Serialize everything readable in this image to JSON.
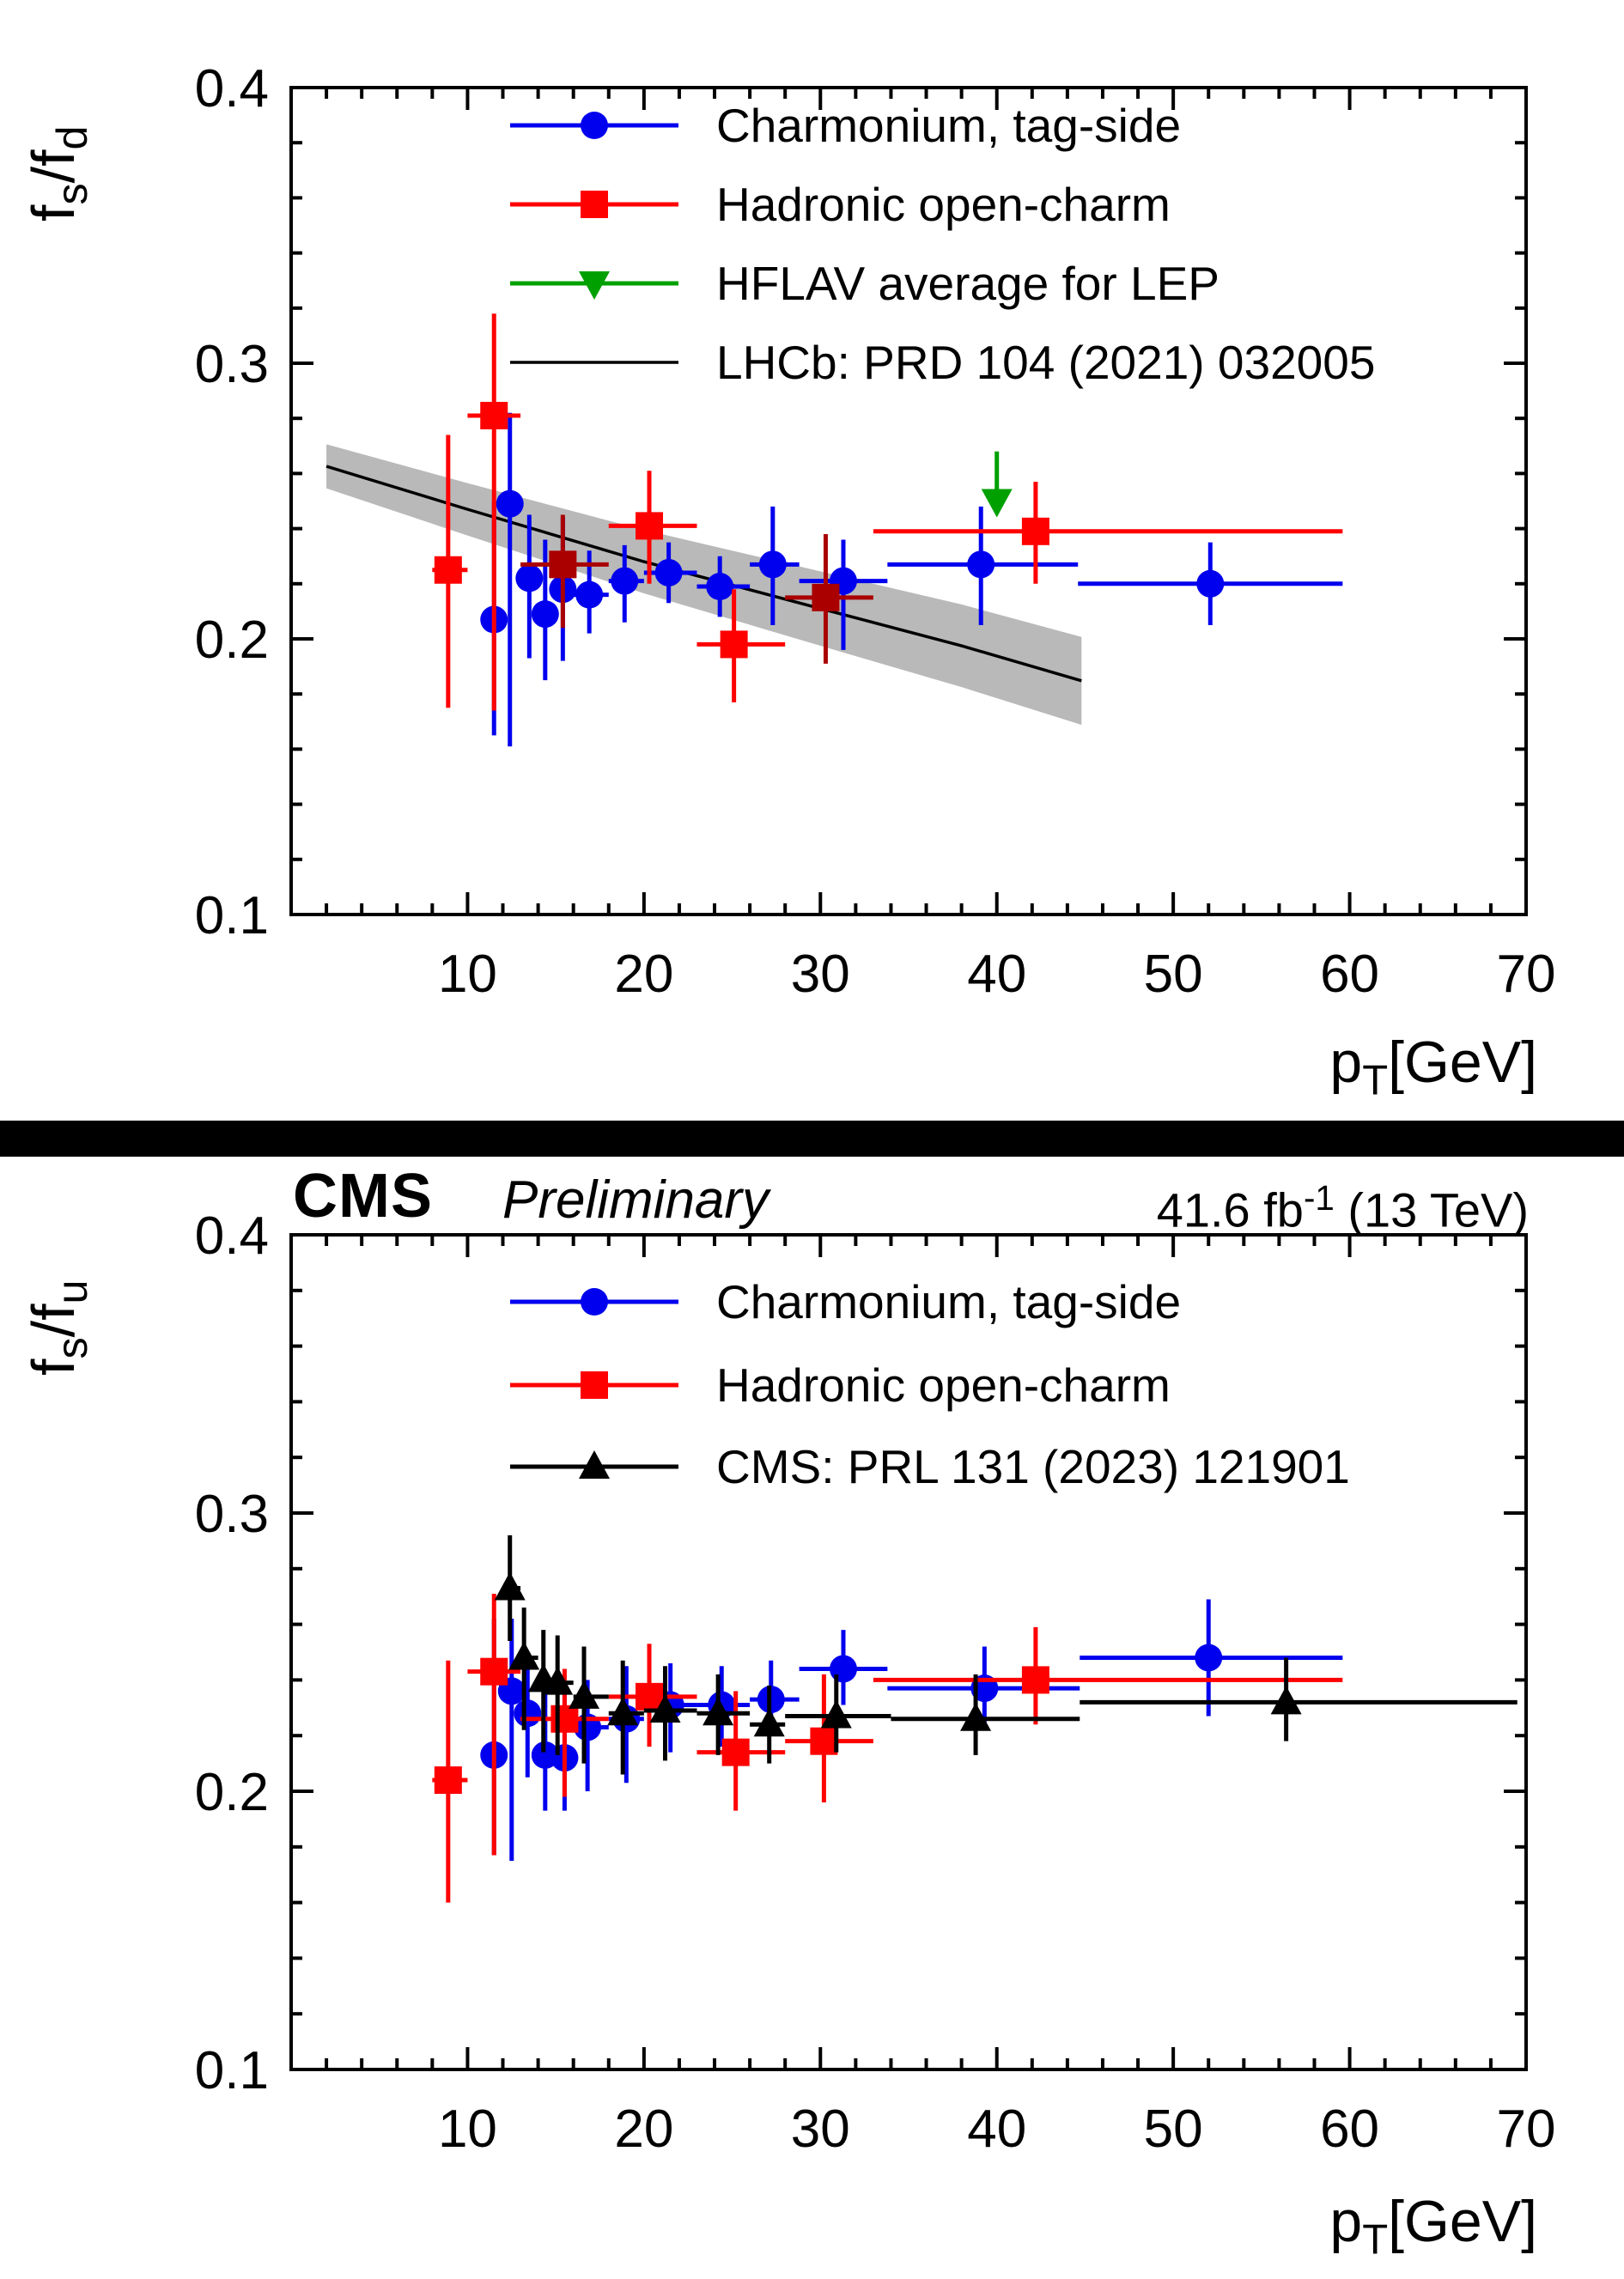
{
  "header": {
    "experiment": "CMS",
    "preliminary": "Preliminary",
    "lumi_main": "41.6 fb",
    "lumi_sup": "-1",
    "lumi_energy": " (13 TeV)"
  },
  "axis_titles": {
    "x_main": "p",
    "x_sub": "T",
    "x_rest": "[GeV]",
    "top_y_base1": "f",
    "top_y_sub1": "s",
    "top_y_base2": "/f",
    "top_y_sub2": "d",
    "bottom_y_base1": "f",
    "bottom_y_sub1": "s",
    "bottom_y_base2": "/f",
    "bottom_y_sub2": "u"
  },
  "colors": {
    "charmonium_blue": "#0000ee",
    "opencharm_red": "#ff0000",
    "opencharm_darkred": "#aa0000",
    "hflav_green": "#00a000",
    "reference_black": "#000000",
    "lhcb_band_gray": "#b9b9b9"
  },
  "chart_data": {
    "type": "scatter",
    "panels": [
      {
        "id": "fs-fd",
        "ylabel": "fs/fd",
        "xlabel": "pT [GeV]",
        "xlim": [
          0,
          70
        ],
        "ylim": [
          0.1,
          0.4
        ],
        "x_major": [
          10,
          20,
          30,
          40,
          50,
          60,
          70
        ],
        "x_minor_step": 2,
        "y_major": [
          0.1,
          0.2,
          0.3,
          0.4
        ],
        "y_minor_step": 0.02,
        "grid": false,
        "frame": {
          "left": 339,
          "right": 1777,
          "top": 102,
          "bottom": 1065
        },
        "band": {
          "x": [
            2,
            10,
            20,
            30,
            38,
            44.8
          ],
          "top": [
            0.2706,
            0.2565,
            0.2395,
            0.2245,
            0.2125,
            0.2007
          ],
          "bottom": [
            0.2546,
            0.2375,
            0.2165,
            0.1975,
            0.1825,
            0.1688
          ],
          "color": "#b9b9b9"
        },
        "refline": {
          "x": [
            2,
            10,
            20,
            30,
            38,
            44.8
          ],
          "y": [
            0.2626,
            0.247,
            0.228,
            0.211,
            0.1975,
            0.1848
          ],
          "color": "#000000"
        },
        "series": [
          {
            "name": "Charmonium, tag-side",
            "marker": "circle",
            "color": "#0000ee",
            "points": [
              {
                "x": 11.5,
                "xlo": 11,
                "xhi": 12,
                "y": 0.207,
                "ylo": 0.165,
                "yhi": 0.25
              },
              {
                "x": 12.4,
                "xlo": 12,
                "xhi": 13,
                "y": 0.249,
                "ylo": 0.161,
                "yhi": 0.282
              },
              {
                "x": 13.5,
                "xlo": 13,
                "xhi": 14,
                "y": 0.222,
                "ylo": 0.193,
                "yhi": 0.245
              },
              {
                "x": 14.4,
                "xlo": 14,
                "xhi": 15,
                "y": 0.209,
                "ylo": 0.185,
                "yhi": 0.236
              },
              {
                "x": 15.4,
                "xlo": 15,
                "xhi": 16,
                "y": 0.218,
                "ylo": 0.192,
                "yhi": 0.244
              },
              {
                "x": 16.9,
                "xlo": 16,
                "xhi": 18,
                "y": 0.216,
                "ylo": 0.202,
                "yhi": 0.232
              },
              {
                "x": 18.9,
                "xlo": 18,
                "xhi": 20,
                "y": 0.221,
                "ylo": 0.206,
                "yhi": 0.234
              },
              {
                "x": 21.4,
                "xlo": 20,
                "xhi": 23,
                "y": 0.224,
                "ylo": 0.213,
                "yhi": 0.235
              },
              {
                "x": 24.3,
                "xlo": 23,
                "xhi": 26,
                "y": 0.219,
                "ylo": 0.208,
                "yhi": 0.23
              },
              {
                "x": 27.3,
                "xlo": 26,
                "xhi": 28.8,
                "y": 0.227,
                "ylo": 0.205,
                "yhi": 0.248
              },
              {
                "x": 31.3,
                "xlo": 28.8,
                "xhi": 33.8,
                "y": 0.221,
                "ylo": 0.196,
                "yhi": 0.236
              },
              {
                "x": 39.1,
                "xlo": 33.8,
                "xhi": 44.6,
                "y": 0.227,
                "ylo": 0.205,
                "yhi": 0.248
              },
              {
                "x": 52.1,
                "xlo": 44.6,
                "xhi": 59.6,
                "y": 0.22,
                "ylo": 0.205,
                "yhi": 0.235
              }
            ]
          },
          {
            "name": "Hadronic open-charm",
            "marker": "square",
            "color": "#ff0000",
            "points": [
              {
                "x": 8.9,
                "xlo": 8,
                "xhi": 10,
                "y": 0.225,
                "ylo": 0.175,
                "yhi": 0.274
              },
              {
                "x": 11.5,
                "xlo": 10,
                "xhi": 13,
                "y": 0.281,
                "ylo": 0.174,
                "yhi": 0.318
              },
              {
                "x": 15.4,
                "xlo": 13,
                "xhi": 18,
                "y": 0.227,
                "ylo": 0.204,
                "yhi": 0.245,
                "shade": "#aa0000"
              },
              {
                "x": 20.3,
                "xlo": 18,
                "xhi": 23,
                "y": 0.241,
                "ylo": 0.22,
                "yhi": 0.261
              },
              {
                "x": 25.1,
                "xlo": 23,
                "xhi": 28,
                "y": 0.198,
                "ylo": 0.177,
                "yhi": 0.218
              },
              {
                "x": 30.3,
                "xlo": 28,
                "xhi": 33,
                "y": 0.215,
                "ylo": 0.191,
                "yhi": 0.238,
                "shade": "#aa0000"
              },
              {
                "x": 42.2,
                "xlo": 33,
                "xhi": 59.6,
                "y": 0.239,
                "ylo": 0.22,
                "yhi": 0.257
              }
            ]
          },
          {
            "name": "HFLAV average for LEP",
            "marker": "triangle-down",
            "color": "#00a000",
            "points": [
              {
                "x": 40,
                "y": 0.25,
                "ylo": 0.25,
                "yhi": 0.268
              }
            ]
          }
        ],
        "legend": {
          "rows": [
            {
              "label": "Charmonium, tag-side",
              "marker": "circle",
              "color": "#0000ee"
            },
            {
              "label": "Hadronic open-charm",
              "marker": "square",
              "color": "#ff0000"
            },
            {
              "label": "HFLAV average for LEP",
              "marker": "triangle-down",
              "color": "#00a000"
            },
            {
              "label": "LHCb: PRD 104 (2021) 032005",
              "marker": "line",
              "color": "#000000"
            }
          ]
        }
      },
      {
        "id": "fs-fu",
        "ylabel": "fs/fu",
        "xlabel": "pT [GeV]",
        "xlim": [
          0,
          70
        ],
        "ylim": [
          0.1,
          0.4
        ],
        "x_major": [
          10,
          20,
          30,
          40,
          50,
          60,
          70
        ],
        "x_minor_step": 2,
        "y_major": [
          0.1,
          0.2,
          0.3,
          0.4
        ],
        "y_minor_step": 0.02,
        "grid": false,
        "frame": {
          "left": 339,
          "right": 1777,
          "top": 1438,
          "bottom": 2410
        },
        "series": [
          {
            "name": "Charmonium, tag-side",
            "marker": "circle",
            "color": "#0000ee",
            "points": [
              {
                "x": 11.5,
                "xlo": 11,
                "xhi": 12,
                "y": 0.213,
                "ylo": 0.177,
                "yhi": 0.262
              },
              {
                "x": 12.5,
                "xlo": 12,
                "xhi": 13,
                "y": 0.236,
                "ylo": 0.175,
                "yhi": 0.262
              },
              {
                "x": 13.4,
                "xlo": 13,
                "xhi": 14,
                "y": 0.228,
                "ylo": 0.205,
                "yhi": 0.246
              },
              {
                "x": 14.4,
                "xlo": 14,
                "xhi": 15,
                "y": 0.213,
                "ylo": 0.193,
                "yhi": 0.24
              },
              {
                "x": 15.5,
                "xlo": 15,
                "xhi": 16,
                "y": 0.212,
                "ylo": 0.193,
                "yhi": 0.238
              },
              {
                "x": 16.8,
                "xlo": 16,
                "xhi": 18,
                "y": 0.223,
                "ylo": 0.2,
                "yhi": 0.24
              },
              {
                "x": 19.0,
                "xlo": 18,
                "xhi": 20,
                "y": 0.226,
                "ylo": 0.203,
                "yhi": 0.245
              },
              {
                "x": 21.5,
                "xlo": 20,
                "xhi": 23,
                "y": 0.231,
                "ylo": 0.214,
                "yhi": 0.246
              },
              {
                "x": 24.4,
                "xlo": 23,
                "xhi": 26,
                "y": 0.231,
                "ylo": 0.216,
                "yhi": 0.245
              },
              {
                "x": 27.2,
                "xlo": 26,
                "xhi": 28.8,
                "y": 0.233,
                "ylo": 0.22,
                "yhi": 0.247
              },
              {
                "x": 31.3,
                "xlo": 28.8,
                "xhi": 33.8,
                "y": 0.244,
                "ylo": 0.231,
                "yhi": 0.258
              },
              {
                "x": 39.3,
                "xlo": 33.8,
                "xhi": 44.7,
                "y": 0.237,
                "ylo": 0.223,
                "yhi": 0.252
              },
              {
                "x": 52.0,
                "xlo": 44.7,
                "xhi": 59.6,
                "y": 0.248,
                "ylo": 0.227,
                "yhi": 0.269
              }
            ]
          },
          {
            "name": "Hadronic open-charm",
            "marker": "square",
            "color": "#ff0000",
            "points": [
              {
                "x": 8.9,
                "xlo": 8,
                "xhi": 10,
                "y": 0.204,
                "ylo": 0.16,
                "yhi": 0.247
              },
              {
                "x": 11.5,
                "xlo": 10,
                "xhi": 13,
                "y": 0.243,
                "ylo": 0.177,
                "yhi": 0.271
              },
              {
                "x": 15.5,
                "xlo": 13,
                "xhi": 18,
                "y": 0.226,
                "ylo": 0.198,
                "yhi": 0.244
              },
              {
                "x": 20.3,
                "xlo": 18,
                "xhi": 23,
                "y": 0.234,
                "ylo": 0.216,
                "yhi": 0.253
              },
              {
                "x": 25.2,
                "xlo": 23,
                "xhi": 28,
                "y": 0.214,
                "ylo": 0.193,
                "yhi": 0.236
              },
              {
                "x": 30.2,
                "xlo": 28,
                "xhi": 33,
                "y": 0.218,
                "ylo": 0.196,
                "yhi": 0.242
              },
              {
                "x": 42.2,
                "xlo": 33,
                "xhi": 59.6,
                "y": 0.24,
                "ylo": 0.224,
                "yhi": 0.259
              }
            ]
          },
          {
            "name": "CMS: PRL 131 (2023) 121901",
            "marker": "triangle-up",
            "color": "#000000",
            "points": [
              {
                "x": 12.4,
                "xlo": 12,
                "xhi": 13,
                "y": 0.273,
                "ylo": 0.254,
                "yhi": 0.292
              },
              {
                "x": 13.2,
                "xlo": 13,
                "xhi": 14,
                "y": 0.248,
                "ylo": 0.222,
                "yhi": 0.266
              },
              {
                "x": 14.3,
                "xlo": 14,
                "xhi": 15,
                "y": 0.24,
                "ylo": 0.214,
                "yhi": 0.258
              },
              {
                "x": 15.1,
                "xlo": 15,
                "xhi": 16,
                "y": 0.239,
                "ylo": 0.213,
                "yhi": 0.256
              },
              {
                "x": 16.6,
                "xlo": 16,
                "xhi": 18,
                "y": 0.234,
                "ylo": 0.21,
                "yhi": 0.252
              },
              {
                "x": 18.8,
                "xlo": 18,
                "xhi": 20,
                "y": 0.228,
                "ylo": 0.206,
                "yhi": 0.247
              },
              {
                "x": 21.2,
                "xlo": 20,
                "xhi": 23,
                "y": 0.229,
                "ylo": 0.211,
                "yhi": 0.245
              },
              {
                "x": 24.2,
                "xlo": 23,
                "xhi": 26,
                "y": 0.228,
                "ylo": 0.213,
                "yhi": 0.242
              },
              {
                "x": 27.1,
                "xlo": 26,
                "xhi": 28,
                "y": 0.224,
                "ylo": 0.21,
                "yhi": 0.238
              },
              {
                "x": 30.9,
                "xlo": 28,
                "xhi": 34,
                "y": 0.227,
                "ylo": 0.214,
                "yhi": 0.242
              },
              {
                "x": 38.8,
                "xlo": 34,
                "xhi": 44.7,
                "y": 0.226,
                "ylo": 0.213,
                "yhi": 0.242
              },
              {
                "x": 56.4,
                "xlo": 44.7,
                "xhi": 69.5,
                "y": 0.232,
                "ylo": 0.218,
                "yhi": 0.248
              }
            ]
          }
        ],
        "legend": {
          "rows": [
            {
              "label": "Charmonium, tag-side",
              "marker": "circle",
              "color": "#0000ee"
            },
            {
              "label": "Hadronic open-charm",
              "marker": "square",
              "color": "#ff0000"
            },
            {
              "label": "CMS: PRL 131 (2023) 121901",
              "marker": "triangle-up",
              "color": "#000000"
            }
          ]
        }
      }
    ]
  }
}
